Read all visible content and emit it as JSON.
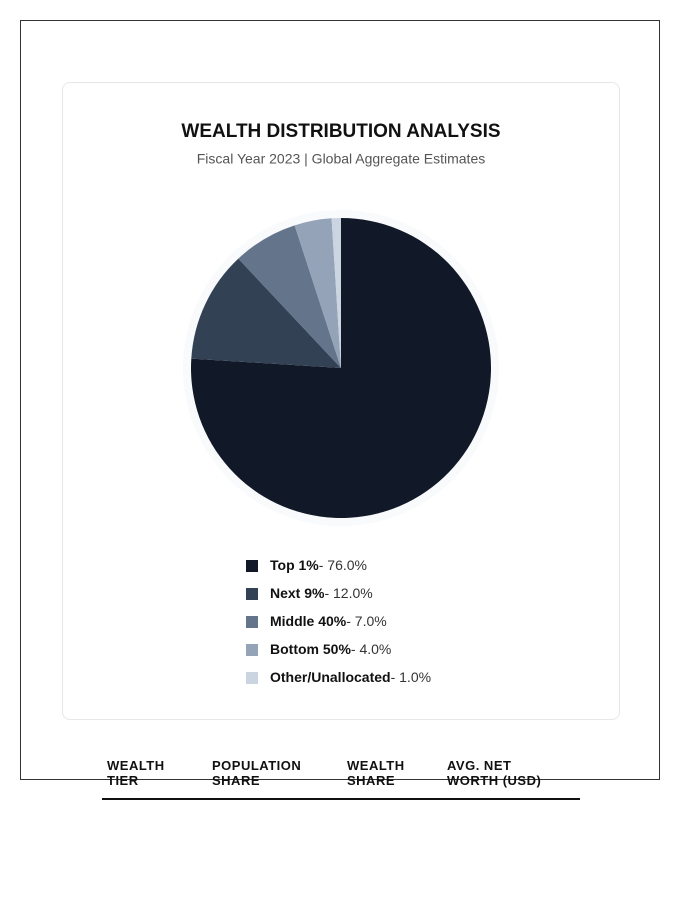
{
  "chart_data": {
    "type": "pie",
    "title": "WEALTH DISTRIBUTION ANALYSIS",
    "subtitle": "Fiscal Year 2023 | Global Aggregate Estimates",
    "categories": [
      "Top 1%",
      "Next 9%",
      "Middle 40%",
      "Bottom 50%",
      "Other/Unallocated"
    ],
    "values": [
      76.0,
      12.0,
      7.0,
      4.0,
      1.0
    ],
    "value_labels": [
      "- 76.0%",
      "- 12.0%",
      "- 7.0%",
      "- 4.0%",
      "- 1.0%"
    ],
    "colors": [
      "#111827",
      "#334155",
      "#64748b",
      "#94a3b8",
      "#cbd5e1"
    ]
  },
  "table": {
    "headers": [
      "WEALTH TIER",
      "POPULATION SHARE",
      "WEALTH SHARE",
      "AVG. NET WORTH (USD)"
    ]
  }
}
